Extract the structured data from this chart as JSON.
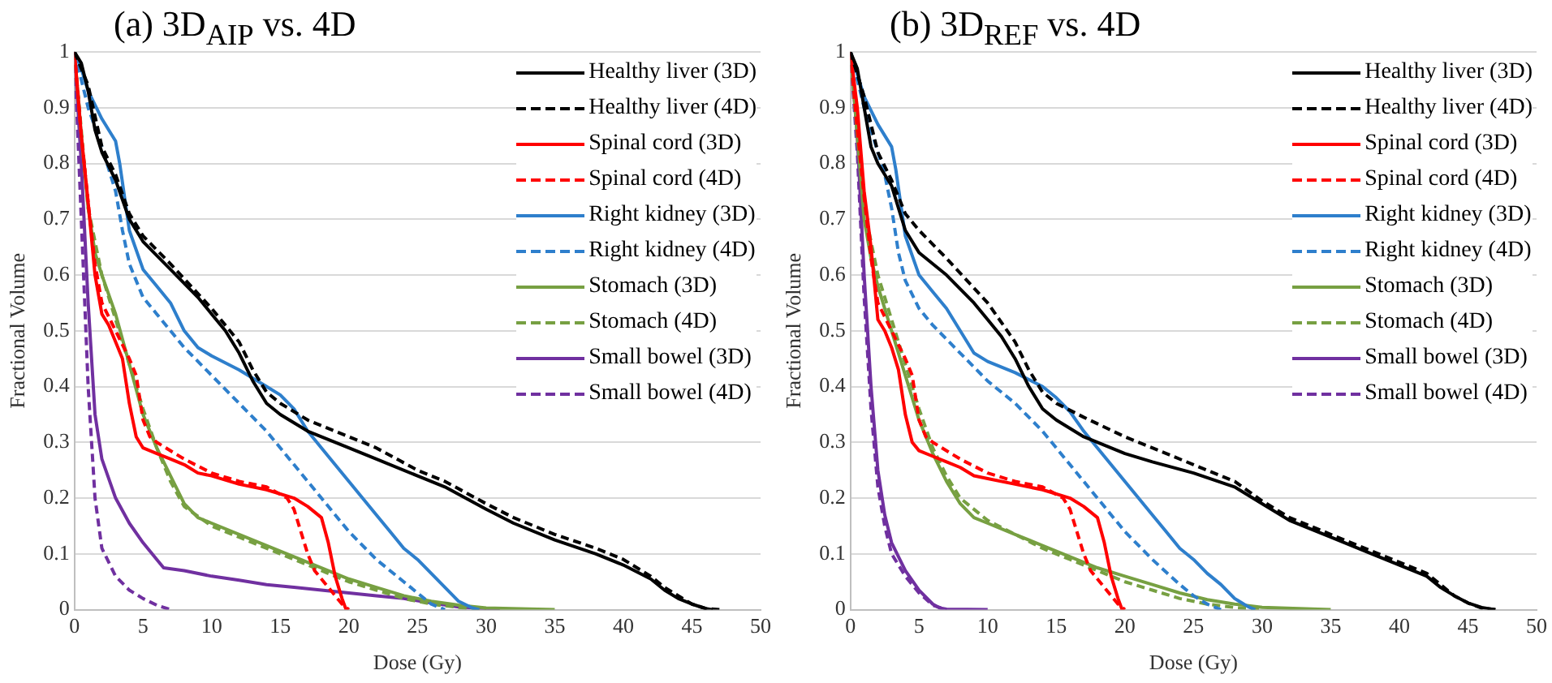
{
  "chart_data": [
    {
      "type": "line",
      "title": "(a) 3D$_{AIP}$ vs. 4D",
      "xlabel": "Dose (Gy)",
      "ylabel": "Fractional Volume",
      "xlim": [
        0,
        50
      ],
      "xticks": [
        0,
        5,
        10,
        15,
        20,
        25,
        30,
        35,
        40,
        45,
        50
      ],
      "ylim": [
        0,
        1
      ],
      "yticks": [
        0,
        0.1,
        0.2,
        0.3,
        0.4,
        0.5,
        0.6,
        0.7,
        0.8,
        0.9,
        1
      ],
      "grid": "y",
      "legend": "top right",
      "series": [
        {
          "name": "Healthy liver (3D)",
          "color": "#000000",
          "line_style": "solid",
          "x": [
            0,
            0.5,
            1,
            1.5,
            2,
            3,
            4,
            5,
            7,
            9,
            10,
            11,
            12,
            13,
            14,
            15,
            17,
            20,
            22,
            25,
            27,
            30,
            32,
            35,
            38,
            40,
            42,
            43,
            44,
            45,
            46,
            46.5
          ],
          "values": [
            1,
            0.98,
            0.93,
            0.86,
            0.82,
            0.77,
            0.7,
            0.66,
            0.61,
            0.56,
            0.53,
            0.5,
            0.46,
            0.41,
            0.37,
            0.35,
            0.32,
            0.29,
            0.27,
            0.24,
            0.22,
            0.18,
            0.155,
            0.125,
            0.1,
            0.08,
            0.055,
            0.035,
            0.02,
            0.01,
            0.002,
            0
          ]
        },
        {
          "name": "Healthy liver (4D)",
          "color": "#000000",
          "line_style": "dashed",
          "x": [
            0,
            1,
            2,
            3,
            4,
            5,
            7,
            10,
            12,
            13,
            14,
            15,
            17,
            20,
            22,
            25,
            27,
            30,
            32,
            35,
            38,
            40,
            42,
            43,
            44,
            45,
            46,
            47
          ],
          "values": [
            1,
            0.94,
            0.83,
            0.78,
            0.71,
            0.67,
            0.62,
            0.54,
            0.48,
            0.43,
            0.39,
            0.37,
            0.34,
            0.31,
            0.29,
            0.25,
            0.23,
            0.19,
            0.165,
            0.135,
            0.11,
            0.09,
            0.06,
            0.04,
            0.025,
            0.01,
            0.002,
            0
          ]
        },
        {
          "name": "Spinal cord (3D)",
          "color": "#ff0000",
          "line_style": "solid",
          "x": [
            0,
            0.5,
            1,
            1.5,
            2,
            2.5,
            3,
            3.5,
            4,
            4.5,
            5,
            6,
            7,
            8,
            9,
            10,
            12,
            14,
            16,
            17,
            18,
            18.5,
            19,
            19.5,
            19.8
          ],
          "values": [
            1,
            0.85,
            0.73,
            0.6,
            0.53,
            0.51,
            0.48,
            0.45,
            0.37,
            0.31,
            0.29,
            0.28,
            0.27,
            0.26,
            0.245,
            0.24,
            0.225,
            0.215,
            0.2,
            0.185,
            0.165,
            0.12,
            0.06,
            0.02,
            0
          ]
        },
        {
          "name": "Spinal cord (4D)",
          "color": "#ff0000",
          "line_style": "dashed",
          "x": [
            0,
            0.5,
            1,
            1.5,
            2,
            3,
            4,
            4.5,
            5,
            5.5,
            6,
            8,
            10,
            12,
            14,
            15.5,
            16,
            16.5,
            17,
            17.5,
            18.5,
            19.5,
            20
          ],
          "values": [
            1,
            0.85,
            0.73,
            0.62,
            0.55,
            0.5,
            0.45,
            0.42,
            0.34,
            0.31,
            0.3,
            0.27,
            0.245,
            0.23,
            0.22,
            0.2,
            0.18,
            0.14,
            0.1,
            0.07,
            0.04,
            0.01,
            0
          ]
        },
        {
          "name": "Right kidney (3D)",
          "color": "#2e7fcc",
          "line_style": "solid",
          "x": [
            0,
            0.5,
            1,
            2,
            3,
            3.3,
            4,
            5,
            6,
            7,
            8,
            9,
            10,
            12,
            14,
            15,
            16,
            17,
            18,
            20,
            22,
            23,
            24,
            25,
            26,
            27,
            28,
            29,
            29.5
          ],
          "values": [
            1,
            0.97,
            0.93,
            0.88,
            0.84,
            0.8,
            0.68,
            0.61,
            0.58,
            0.55,
            0.5,
            0.47,
            0.455,
            0.43,
            0.4,
            0.385,
            0.36,
            0.32,
            0.29,
            0.23,
            0.17,
            0.14,
            0.11,
            0.09,
            0.065,
            0.04,
            0.015,
            0.003,
            0
          ]
        },
        {
          "name": "Right kidney (4D)",
          "color": "#2e7fcc",
          "line_style": "dashed",
          "x": [
            0,
            0.5,
            1,
            2,
            3,
            3.5,
            4,
            5,
            6,
            8,
            10,
            12,
            14,
            16,
            18,
            20,
            22,
            24,
            25,
            26,
            27
          ],
          "values": [
            1,
            0.95,
            0.9,
            0.83,
            0.75,
            0.68,
            0.62,
            0.56,
            0.53,
            0.47,
            0.42,
            0.37,
            0.32,
            0.26,
            0.2,
            0.14,
            0.09,
            0.05,
            0.03,
            0.01,
            0
          ]
        },
        {
          "name": "Stomach (3D)",
          "color": "#77a042",
          "line_style": "solid",
          "x": [
            0,
            0.5,
            1,
            1.5,
            2,
            3,
            4,
            5,
            6,
            7,
            8,
            9,
            10,
            12,
            14,
            16,
            18,
            20,
            22,
            24,
            26,
            28,
            30,
            35
          ],
          "values": [
            1,
            0.85,
            0.72,
            0.64,
            0.6,
            0.53,
            0.44,
            0.35,
            0.29,
            0.24,
            0.19,
            0.165,
            0.155,
            0.135,
            0.115,
            0.095,
            0.075,
            0.055,
            0.04,
            0.025,
            0.015,
            0.008,
            0.003,
            0
          ]
        },
        {
          "name": "Stomach (4D)",
          "color": "#77a042",
          "line_style": "dashed",
          "x": [
            0,
            1,
            2,
            3,
            4,
            5,
            6,
            7,
            8,
            10,
            12,
            14,
            16,
            18,
            20,
            22,
            24,
            26,
            28,
            30
          ],
          "values": [
            1,
            0.72,
            0.6,
            0.52,
            0.44,
            0.36,
            0.29,
            0.23,
            0.185,
            0.15,
            0.13,
            0.11,
            0.09,
            0.07,
            0.05,
            0.035,
            0.02,
            0.01,
            0.004,
            0
          ]
        },
        {
          "name": "Small bowel (3D)",
          "color": "#7030a0",
          "line_style": "solid",
          "x": [
            0,
            0.5,
            1,
            1.5,
            2,
            3,
            4,
            5,
            6,
            6.5,
            8,
            10,
            12,
            14,
            16,
            18,
            20,
            22,
            24,
            26,
            28,
            30,
            31
          ],
          "values": [
            1,
            0.8,
            0.55,
            0.35,
            0.27,
            0.2,
            0.155,
            0.12,
            0.09,
            0.075,
            0.07,
            0.06,
            0.053,
            0.045,
            0.04,
            0.035,
            0.03,
            0.025,
            0.02,
            0.012,
            0.005,
            0.002,
            0
          ]
        },
        {
          "name": "Small bowel (4D)",
          "color": "#7030a0",
          "line_style": "dashed",
          "x": [
            0,
            0.5,
            1,
            1.5,
            2,
            3,
            4,
            5,
            6,
            7
          ],
          "values": [
            1,
            0.7,
            0.4,
            0.2,
            0.11,
            0.06,
            0.035,
            0.02,
            0.008,
            0
          ]
        }
      ]
    },
    {
      "type": "line",
      "title": "(b) 3D$_{REF}$ vs. 4D",
      "xlabel": "Dose (Gy)",
      "ylabel": "Fractional Volume",
      "xlim": [
        0,
        50
      ],
      "xticks": [
        0,
        5,
        10,
        15,
        20,
        25,
        30,
        35,
        40,
        45,
        50
      ],
      "ylim": [
        0,
        1
      ],
      "yticks": [
        0,
        0.1,
        0.2,
        0.3,
        0.4,
        0.5,
        0.6,
        0.7,
        0.8,
        0.9,
        1
      ],
      "grid": "y",
      "legend": "top right",
      "series": [
        {
          "name": "Healthy liver (3D)",
          "color": "#000000",
          "line_style": "solid",
          "x": [
            0,
            0.5,
            1,
            1.5,
            2,
            3,
            4,
            5,
            7,
            9,
            10,
            11,
            12,
            13,
            14,
            15,
            17,
            20,
            22,
            25,
            28,
            30,
            32,
            35,
            38,
            40,
            42,
            43,
            44,
            45,
            46,
            47
          ],
          "values": [
            1,
            0.97,
            0.9,
            0.83,
            0.8,
            0.76,
            0.68,
            0.64,
            0.6,
            0.55,
            0.52,
            0.49,
            0.45,
            0.4,
            0.36,
            0.34,
            0.31,
            0.28,
            0.265,
            0.245,
            0.22,
            0.19,
            0.16,
            0.13,
            0.1,
            0.08,
            0.06,
            0.04,
            0.025,
            0.012,
            0.004,
            0
          ]
        },
        {
          "name": "Healthy liver (4D)",
          "color": "#000000",
          "line_style": "dashed",
          "x": [
            0,
            1,
            2,
            3,
            4,
            5,
            7,
            10,
            12,
            13,
            14,
            15,
            17,
            20,
            22,
            25,
            28,
            30,
            32,
            35,
            38,
            40,
            42,
            43,
            44,
            45,
            46,
            47
          ],
          "values": [
            1,
            0.92,
            0.82,
            0.77,
            0.71,
            0.68,
            0.63,
            0.55,
            0.48,
            0.43,
            0.39,
            0.37,
            0.345,
            0.31,
            0.29,
            0.26,
            0.23,
            0.195,
            0.165,
            0.135,
            0.105,
            0.085,
            0.065,
            0.045,
            0.025,
            0.012,
            0.003,
            0
          ]
        },
        {
          "name": "Spinal cord (3D)",
          "color": "#ff0000",
          "line_style": "solid",
          "x": [
            0,
            0.5,
            1,
            1.5,
            2,
            2.5,
            3,
            3.5,
            4,
            4.5,
            5,
            6,
            7,
            8,
            9,
            10,
            12,
            14,
            16,
            17,
            18,
            18.5,
            19,
            19.5,
            19.8
          ],
          "values": [
            1,
            0.9,
            0.75,
            0.65,
            0.52,
            0.5,
            0.47,
            0.43,
            0.35,
            0.3,
            0.285,
            0.275,
            0.265,
            0.255,
            0.24,
            0.235,
            0.225,
            0.215,
            0.2,
            0.185,
            0.165,
            0.12,
            0.06,
            0.02,
            0
          ]
        },
        {
          "name": "Spinal cord (4D)",
          "color": "#ff0000",
          "line_style": "dashed",
          "x": [
            0,
            0.5,
            1,
            1.5,
            2,
            3,
            4,
            4.5,
            5,
            5.5,
            6,
            8,
            10,
            12,
            14,
            15.5,
            16,
            16.5,
            17,
            17.5,
            18.5,
            19.5,
            20
          ],
          "values": [
            1,
            0.86,
            0.74,
            0.63,
            0.55,
            0.5,
            0.45,
            0.42,
            0.34,
            0.31,
            0.3,
            0.27,
            0.245,
            0.23,
            0.22,
            0.2,
            0.18,
            0.14,
            0.1,
            0.07,
            0.04,
            0.01,
            0
          ]
        },
        {
          "name": "Right kidney (3D)",
          "color": "#2e7fcc",
          "line_style": "solid",
          "x": [
            0,
            0.5,
            1,
            2,
            3,
            3.3,
            4,
            5,
            6,
            7,
            8,
            9,
            10,
            12,
            14,
            15,
            16,
            17,
            18,
            20,
            22,
            23,
            24,
            25,
            26,
            27,
            28,
            29,
            29.5
          ],
          "values": [
            1,
            0.96,
            0.92,
            0.87,
            0.83,
            0.79,
            0.67,
            0.6,
            0.57,
            0.54,
            0.5,
            0.46,
            0.445,
            0.425,
            0.4,
            0.38,
            0.355,
            0.32,
            0.29,
            0.23,
            0.17,
            0.14,
            0.11,
            0.09,
            0.065,
            0.045,
            0.02,
            0.005,
            0
          ]
        },
        {
          "name": "Right kidney (4D)",
          "color": "#2e7fcc",
          "line_style": "dashed",
          "x": [
            0,
            1,
            2,
            2.5,
            3,
            3.5,
            4,
            5,
            6,
            8,
            10,
            12,
            14,
            16,
            18,
            20,
            22,
            24,
            25,
            26,
            27
          ],
          "values": [
            1,
            0.9,
            0.82,
            0.78,
            0.72,
            0.64,
            0.59,
            0.54,
            0.51,
            0.46,
            0.41,
            0.37,
            0.32,
            0.26,
            0.2,
            0.14,
            0.09,
            0.045,
            0.025,
            0.01,
            0
          ]
        },
        {
          "name": "Stomach (3D)",
          "color": "#77a042",
          "line_style": "solid",
          "x": [
            0,
            0.5,
            1,
            1.5,
            2,
            3,
            4,
            5,
            6,
            7,
            8,
            9,
            10,
            12,
            14,
            16,
            18,
            20,
            22,
            24,
            26,
            28,
            30,
            35
          ],
          "values": [
            1,
            0.85,
            0.7,
            0.63,
            0.58,
            0.5,
            0.42,
            0.34,
            0.28,
            0.23,
            0.19,
            0.165,
            0.155,
            0.135,
            0.115,
            0.095,
            0.075,
            0.06,
            0.045,
            0.03,
            0.018,
            0.01,
            0.004,
            0
          ]
        },
        {
          "name": "Stomach (4D)",
          "color": "#77a042",
          "line_style": "dashed",
          "x": [
            0,
            1,
            2,
            3,
            4,
            5,
            6,
            7,
            8,
            10,
            12,
            14,
            16,
            18,
            20,
            22,
            24,
            26,
            28,
            30
          ],
          "values": [
            1,
            0.72,
            0.6,
            0.52,
            0.44,
            0.36,
            0.29,
            0.24,
            0.2,
            0.16,
            0.135,
            0.11,
            0.09,
            0.07,
            0.05,
            0.035,
            0.02,
            0.01,
            0.004,
            0
          ]
        },
        {
          "name": "Small bowel (3D)",
          "color": "#7030a0",
          "line_style": "solid",
          "x": [
            0,
            0.5,
            1,
            1.5,
            2,
            2.5,
            3,
            4,
            5,
            6,
            6.5,
            7,
            10
          ],
          "values": [
            1,
            0.85,
            0.6,
            0.4,
            0.25,
            0.17,
            0.12,
            0.07,
            0.035,
            0.01,
            0.003,
            0.001,
            0
          ]
        },
        {
          "name": "Small bowel (4D)",
          "color": "#7030a0",
          "line_style": "dashed",
          "x": [
            0,
            0.5,
            1,
            1.5,
            2,
            2.5,
            3,
            4,
            5,
            6,
            7
          ],
          "values": [
            1,
            0.82,
            0.56,
            0.36,
            0.22,
            0.15,
            0.1,
            0.06,
            0.03,
            0.008,
            0
          ]
        }
      ]
    }
  ]
}
